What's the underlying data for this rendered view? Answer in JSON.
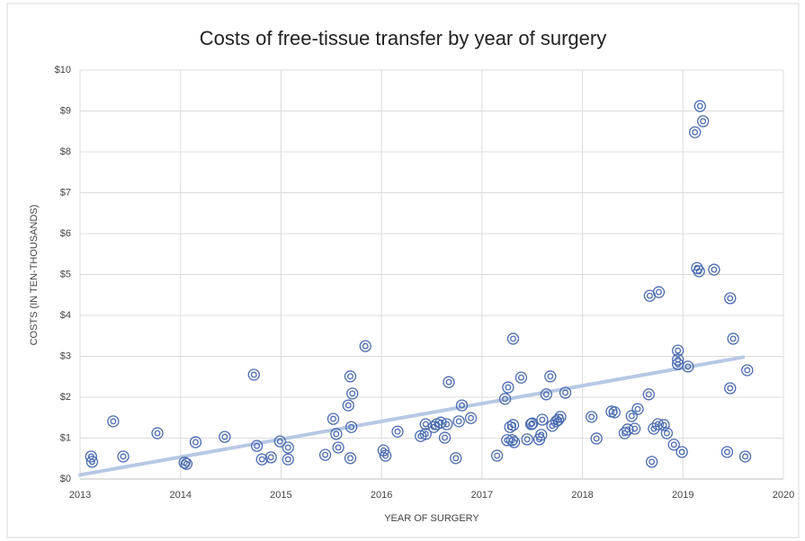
{
  "chart_data": {
    "type": "scatter",
    "title": "Costs of free-tissue transfer by year of surgery",
    "x_label": "YEAR OF SURGERY",
    "y_label": "COSTS (IN TEN-THOUSANDS)",
    "color": "#4a6bb0",
    "grid": true,
    "xlim": [
      2013,
      2020
    ],
    "xticks": [
      2013,
      2014,
      2015,
      2016,
      2017,
      2018,
      2019,
      2020
    ],
    "ylim": [
      0,
      10
    ],
    "yticks": [
      {
        "value": 0,
        "label": "$0"
      },
      {
        "value": 1,
        "label": "$1"
      },
      {
        "value": 2,
        "label": "$2"
      },
      {
        "value": 3,
        "label": "$3"
      },
      {
        "value": 4,
        "label": "$4"
      },
      {
        "value": 5,
        "label": "$5"
      },
      {
        "value": 6,
        "label": "$6"
      },
      {
        "value": 7,
        "label": "$7"
      },
      {
        "value": 8,
        "label": "$8"
      },
      {
        "value": 9,
        "label": "$9"
      },
      {
        "value": 10,
        "label": "$10"
      }
    ],
    "x": [
      2013.11,
      2013.12,
      2013.33,
      2013.43,
      2013.77,
      2014.04,
      2014.06,
      2014.15,
      2014.44,
      2014.73,
      2014.76,
      2014.81,
      2014.9,
      2014.99,
      2015.07,
      2015.07,
      2015.44,
      2015.52,
      2015.55,
      2015.57,
      2015.67,
      2015.69,
      2015.71,
      2015.7,
      2015.69,
      2015.84,
      2016.02,
      2016.04,
      2016.16,
      2016.39,
      2016.44,
      2016.44,
      2016.52,
      2016.55,
      2016.59,
      2016.63,
      2016.65,
      2016.67,
      2016.74,
      2016.77,
      2016.8,
      2016.89,
      2017.15,
      2017.23,
      2017.26,
      2017.25,
      2017.28,
      2017.31,
      2017.3,
      2017.31,
      2017.32,
      2017.39,
      2017.45,
      2017.49,
      2017.5,
      2017.57,
      2017.59,
      2017.6,
      2017.64,
      2017.68,
      2017.7,
      2017.74,
      2017.76,
      2017.78,
      2017.83,
      2018.09,
      2018.14,
      2018.29,
      2018.32,
      2018.42,
      2018.45,
      2018.49,
      2018.52,
      2018.55,
      2018.66,
      2018.67,
      2018.69,
      2018.71,
      2018.76,
      2018.75,
      2018.81,
      2018.84,
      2018.91,
      2018.95,
      2018.95,
      2018.95,
      2018.99,
      2019.05,
      2019.12,
      2019.14,
      2019.16,
      2019.17,
      2019.2,
      2019.31,
      2019.44,
      2019.47,
      2019.47,
      2019.5,
      2019.62,
      2019.64
    ],
    "values": [
      0.55,
      0.42,
      1.41,
      0.55,
      1.12,
      0.4,
      0.37,
      0.9,
      1.03,
      2.55,
      0.81,
      0.48,
      0.53,
      0.92,
      0.77,
      0.48,
      0.59,
      1.47,
      1.1,
      0.77,
      1.8,
      2.51,
      2.09,
      1.27,
      0.51,
      3.25,
      0.7,
      0.57,
      1.16,
      1.05,
      1.1,
      1.34,
      1.27,
      1.34,
      1.38,
      1.01,
      1.34,
      2.37,
      0.51,
      1.41,
      1.8,
      1.49,
      0.57,
      1.96,
      2.24,
      0.95,
      1.27,
      1.32,
      0.95,
      3.43,
      0.9,
      2.48,
      0.97,
      1.34,
      1.36,
      0.97,
      1.08,
      1.45,
      2.07,
      2.51,
      1.3,
      1.41,
      1.45,
      1.52,
      2.11,
      1.52,
      0.99,
      1.65,
      1.63,
      1.12,
      1.21,
      1.54,
      1.23,
      1.71,
      2.07,
      4.48,
      0.42,
      1.23,
      4.57,
      1.34,
      1.32,
      1.12,
      0.84,
      3.14,
      2.92,
      2.81,
      0.66,
      2.75,
      8.48,
      5.16,
      5.08,
      9.12,
      8.75,
      5.12,
      0.66,
      4.42,
      2.22,
      3.43,
      0.55,
      2.66
    ],
    "trendline": {
      "color": "#b8c8e4",
      "x": [
        2013.0,
        2019.6
      ],
      "values": [
        0.1,
        2.98
      ]
    }
  }
}
